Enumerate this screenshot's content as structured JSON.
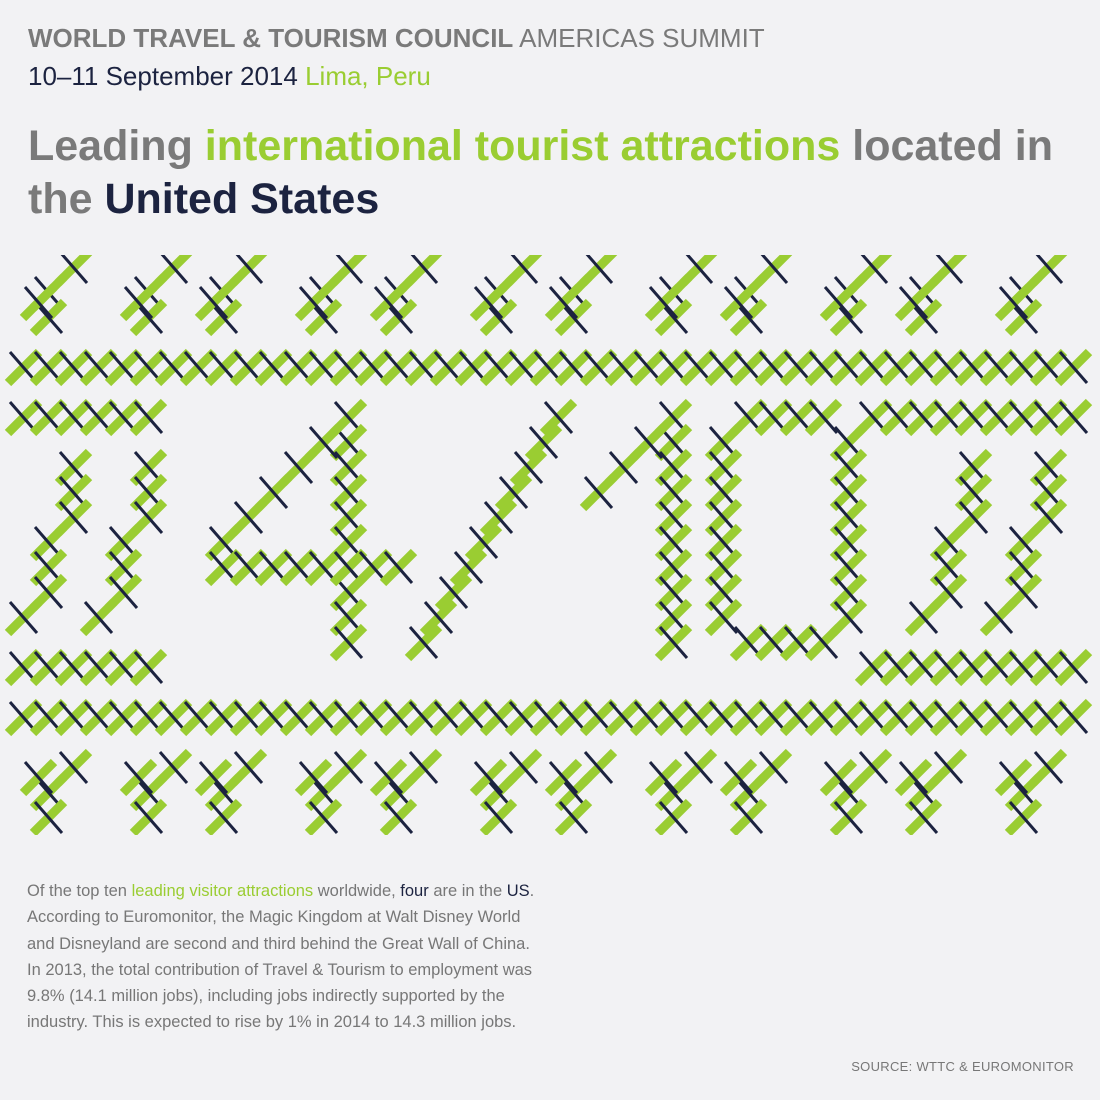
{
  "header": {
    "org": "WORLD TRAVEL & TOURISM COUNCIL",
    "event": "AMERICAS SUMMIT",
    "dates": "10–11 September 2014",
    "location": "Lima, Peru"
  },
  "title": {
    "part1": "Leading ",
    "part2": "international tourist attractions",
    "part3": " located in the ",
    "part4": "United States"
  },
  "graphic": {
    "numerator": "4",
    "separator": "/",
    "denominator": "10",
    "colors": {
      "green": "#9acd32",
      "navy": "#1c2340",
      "background": "#f2f2f4",
      "grey": "#7a7a7a"
    }
  },
  "body": {
    "t1": "Of the top ten ",
    "t2": "leading visitor attractions",
    "t3": " worldwide, ",
    "t4": "four",
    "t5": " are in the ",
    "t6": "US",
    "t7": ". According to Euromonitor, the Magic Kingdom at Walt Disney World and Disneyland are second and third behind the Great Wall of China. In 2013, the total contribution of Travel & Tourism to employment was 9.8% (14.1 million jobs), including jobs indirectly supported by the industry. This is expected to rise by 1% in 2014 to 14.3 million jobs."
  },
  "source": "SOURCE: WTTC & EUROMONITOR"
}
